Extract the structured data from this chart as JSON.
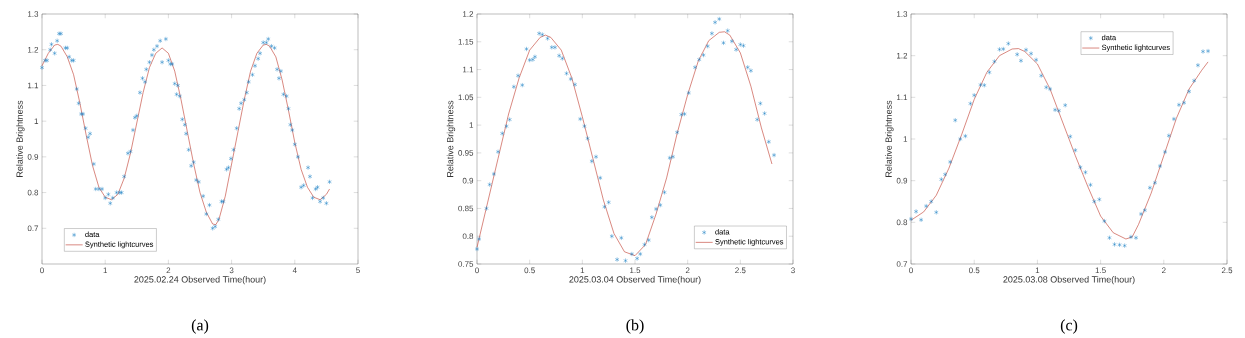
{
  "chart_data": [
    {
      "type": "scatter",
      "xlabel": "2025.02.24 Observed Time(hour)",
      "ylabel": "Relative Brightness",
      "xlim": [
        0,
        5
      ],
      "ylim": [
        0.6,
        1.3
      ],
      "xticks": [
        0,
        1,
        2,
        3,
        4,
        5
      ],
      "yticks": [
        0.7,
        0.8,
        0.9,
        1,
        1.1,
        1.2,
        1.3
      ],
      "legend": "bottom left",
      "annotations": [
        "(a)"
      ],
      "series": [
        {
          "name": "data",
          "marker": "cross",
          "color": "#0072bd",
          "x": [
            0.0,
            0.05,
            0.08,
            0.13,
            0.15,
            0.2,
            0.24,
            0.27,
            0.3,
            0.37,
            0.4,
            0.43,
            0.47,
            0.5,
            0.55,
            0.58,
            0.62,
            0.65,
            0.69,
            0.73,
            0.76,
            0.82,
            0.85,
            0.9,
            0.95,
            1.0,
            1.05,
            1.08,
            1.12,
            1.18,
            1.23,
            1.26,
            1.3,
            1.36,
            1.4,
            1.44,
            1.47,
            1.5,
            1.55,
            1.59,
            1.63,
            1.65,
            1.7,
            1.74,
            1.77,
            1.82,
            1.87,
            1.9,
            1.96,
            2.0,
            2.03,
            2.06,
            2.1,
            2.13,
            2.15,
            2.18,
            2.22,
            2.26,
            2.28,
            2.32,
            2.36,
            2.4,
            2.44,
            2.48,
            2.55,
            2.6,
            2.65,
            2.7,
            2.74,
            2.79,
            2.84,
            2.87,
            2.92,
            2.95,
            2.99,
            3.03,
            3.08,
            3.12,
            3.15,
            3.2,
            3.24,
            3.27,
            3.33,
            3.37,
            3.42,
            3.45,
            3.5,
            3.55,
            3.58,
            3.63,
            3.68,
            3.72,
            3.75,
            3.78,
            3.82,
            3.87,
            3.9,
            3.93,
            3.96,
            4.0,
            4.05,
            4.1,
            4.14,
            4.21,
            4.24,
            4.28,
            4.33,
            4.36,
            4.4,
            4.45,
            4.5,
            4.55
          ],
          "values": [
            1.15,
            1.17,
            1.17,
            1.2,
            1.215,
            1.19,
            1.225,
            1.245,
            1.245,
            1.205,
            1.205,
            1.18,
            1.17,
            1.17,
            1.09,
            1.05,
            1.02,
            1.02,
            0.98,
            0.955,
            0.965,
            0.88,
            0.81,
            0.81,
            0.81,
            0.785,
            0.795,
            0.77,
            0.785,
            0.8,
            0.8,
            0.8,
            0.845,
            0.91,
            0.915,
            0.975,
            1.01,
            1.015,
            1.08,
            1.12,
            1.11,
            1.145,
            1.165,
            1.185,
            1.2,
            1.21,
            1.225,
            1.165,
            1.23,
            1.17,
            1.16,
            1.16,
            1.105,
            1.075,
            1.1,
            1.07,
            1.005,
            0.99,
            0.965,
            0.92,
            0.875,
            0.885,
            0.835,
            0.83,
            0.79,
            0.74,
            0.765,
            0.7,
            0.705,
            0.725,
            0.775,
            0.775,
            0.865,
            0.87,
            0.895,
            0.92,
            0.98,
            1.035,
            1.05,
            1.06,
            1.08,
            1.11,
            1.13,
            1.155,
            1.175,
            1.19,
            1.22,
            1.22,
            1.23,
            1.21,
            1.205,
            1.145,
            1.12,
            1.14,
            1.075,
            1.07,
            1.035,
            0.99,
            0.975,
            0.935,
            0.9,
            0.815,
            0.82,
            0.87,
            0.845,
            0.785,
            0.81,
            0.815,
            0.775,
            0.785,
            0.77,
            0.83
          ]
        },
        {
          "name": "Synthetic lightcurves",
          "type": "line",
          "color": "#c0392b",
          "x": [
            0,
            0.1,
            0.2,
            0.25,
            0.3,
            0.4,
            0.5,
            0.6,
            0.7,
            0.8,
            0.9,
            1.0,
            1.1,
            1.2,
            1.3,
            1.4,
            1.5,
            1.6,
            1.7,
            1.8,
            1.9,
            2.0,
            2.1,
            2.2,
            2.3,
            2.4,
            2.5,
            2.6,
            2.7,
            2.75,
            2.8,
            2.9,
            3.0,
            3.1,
            3.2,
            3.3,
            3.4,
            3.5,
            3.55,
            3.6,
            3.7,
            3.8,
            3.9,
            4.0,
            4.1,
            4.2,
            4.3,
            4.4,
            4.5,
            4.55
          ],
          "values": [
            1.155,
            1.19,
            1.213,
            1.215,
            1.21,
            1.18,
            1.13,
            1.05,
            0.96,
            0.875,
            0.815,
            0.787,
            0.78,
            0.795,
            0.84,
            0.91,
            0.995,
            1.08,
            1.15,
            1.19,
            1.205,
            1.19,
            1.14,
            1.06,
            0.97,
            0.88,
            0.8,
            0.745,
            0.712,
            0.71,
            0.725,
            0.79,
            0.88,
            0.97,
            1.06,
            1.14,
            1.19,
            1.213,
            1.215,
            1.21,
            1.18,
            1.115,
            1.03,
            0.94,
            0.865,
            0.815,
            0.787,
            0.78,
            0.795,
            0.81
          ]
        }
      ]
    },
    {
      "type": "scatter",
      "xlabel": "2025.03.04 Observed Time(hour)",
      "ylabel": "Relative Brightness",
      "xlim": [
        0,
        3
      ],
      "ylim": [
        0.75,
        1.2
      ],
      "xticks": [
        0,
        0.5,
        1,
        1.5,
        2,
        2.5,
        3
      ],
      "yticks": [
        0.75,
        0.8,
        0.85,
        0.9,
        0.95,
        1,
        1.05,
        1.1,
        1.15,
        1.2
      ],
      "legend": "bottom right",
      "annotations": [
        "(b)"
      ],
      "series": [
        {
          "name": "data",
          "marker": "cross",
          "color": "#0072bd",
          "x": [
            0.0,
            0.02,
            0.09,
            0.12,
            0.16,
            0.2,
            0.24,
            0.28,
            0.31,
            0.35,
            0.39,
            0.43,
            0.47,
            0.5,
            0.53,
            0.55,
            0.59,
            0.62,
            0.67,
            0.71,
            0.74,
            0.78,
            0.81,
            0.85,
            0.89,
            0.93,
            0.98,
            1.02,
            1.05,
            1.09,
            1.13,
            1.17,
            1.21,
            1.25,
            1.28,
            1.33,
            1.37,
            1.41,
            1.47,
            1.52,
            1.55,
            1.59,
            1.63,
            1.66,
            1.7,
            1.74,
            1.78,
            1.83,
            1.86,
            1.9,
            1.94,
            1.97,
            2.01,
            2.07,
            2.11,
            2.15,
            2.19,
            2.23,
            2.26,
            2.3,
            2.34,
            2.38,
            2.42,
            2.46,
            2.5,
            2.53,
            2.57,
            2.6,
            2.66,
            2.69,
            2.73,
            2.77,
            2.82
          ],
          "values": [
            0.777,
            0.795,
            0.85,
            0.893,
            0.912,
            0.952,
            0.985,
            0.998,
            1.01,
            1.069,
            1.089,
            1.072,
            1.137,
            1.117,
            1.118,
            1.123,
            1.165,
            1.163,
            1.156,
            1.14,
            1.14,
            1.125,
            1.12,
            1.093,
            1.083,
            1.073,
            1.011,
            0.998,
            0.976,
            0.935,
            0.943,
            0.905,
            0.853,
            0.861,
            0.8,
            0.758,
            0.797,
            0.756,
            0.768,
            0.76,
            0.768,
            0.785,
            0.793,
            0.834,
            0.849,
            0.856,
            0.879,
            0.941,
            0.943,
            0.987,
            1.019,
            1.02,
            1.058,
            1.104,
            1.118,
            1.126,
            1.142,
            1.165,
            1.185,
            1.191,
            1.148,
            1.17,
            1.151,
            1.136,
            1.145,
            1.143,
            1.104,
            1.098,
            1.01,
            1.039,
            1.021,
            0.97,
            0.946
          ]
        },
        {
          "name": "Synthetic lightcurves",
          "type": "line",
          "color": "#c0392b",
          "x": [
            0,
            0.1,
            0.2,
            0.3,
            0.4,
            0.5,
            0.6,
            0.65,
            0.7,
            0.8,
            0.9,
            1.0,
            1.1,
            1.2,
            1.3,
            1.4,
            1.5,
            1.6,
            1.7,
            1.8,
            1.9,
            2.0,
            2.1,
            2.2,
            2.3,
            2.35,
            2.4,
            2.5,
            2.6,
            2.7,
            2.8
          ],
          "values": [
            0.78,
            0.86,
            0.94,
            1.02,
            1.085,
            1.135,
            1.158,
            1.162,
            1.158,
            1.135,
            1.085,
            1.015,
            0.94,
            0.865,
            0.805,
            0.772,
            0.765,
            0.785,
            0.84,
            0.905,
            0.985,
            1.055,
            1.115,
            1.152,
            1.167,
            1.168,
            1.162,
            1.13,
            1.07,
            0.995,
            0.93
          ]
        }
      ]
    },
    {
      "type": "scatter",
      "xlabel": "2025.03.08 Observed Time(hour)",
      "ylabel": "Relative Brightness",
      "xlim": [
        0,
        2.5
      ],
      "ylim": [
        0.7,
        1.3
      ],
      "xticks": [
        0,
        0.5,
        1,
        1.5,
        2,
        2.5
      ],
      "yticks": [
        0.7,
        0.8,
        0.9,
        1,
        1.1,
        1.2,
        1.3
      ],
      "legend": "top right",
      "annotations": [
        "(c)"
      ],
      "series": [
        {
          "name": "data",
          "marker": "cross",
          "color": "#0072bd",
          "x": [
            0.0,
            0.04,
            0.08,
            0.12,
            0.16,
            0.2,
            0.24,
            0.27,
            0.31,
            0.35,
            0.39,
            0.43,
            0.47,
            0.5,
            0.55,
            0.58,
            0.62,
            0.66,
            0.7,
            0.73,
            0.77,
            0.84,
            0.87,
            0.91,
            0.95,
            0.99,
            1.03,
            1.07,
            1.1,
            1.14,
            1.17,
            1.22,
            1.26,
            1.3,
            1.34,
            1.38,
            1.42,
            1.45,
            1.49,
            1.53,
            1.57,
            1.61,
            1.65,
            1.69,
            1.74,
            1.78,
            1.82,
            1.85,
            1.89,
            1.93,
            1.97,
            2.01,
            2.04,
            2.08,
            2.12,
            2.16,
            2.2,
            2.24,
            2.27,
            2.31,
            2.35
          ],
          "values": [
            0.808,
            0.826,
            0.806,
            0.839,
            0.85,
            0.824,
            0.903,
            0.915,
            0.945,
            1.045,
            1.0,
            1.007,
            1.085,
            1.105,
            1.13,
            1.129,
            1.16,
            1.186,
            1.215,
            1.216,
            1.229,
            1.203,
            1.188,
            1.214,
            1.205,
            1.19,
            1.152,
            1.124,
            1.12,
            1.07,
            1.068,
            1.081,
            1.006,
            0.973,
            0.932,
            0.92,
            0.89,
            0.85,
            0.855,
            0.803,
            0.763,
            0.747,
            0.746,
            0.744,
            0.765,
            0.763,
            0.82,
            0.829,
            0.883,
            0.895,
            0.935,
            0.969,
            1.008,
            1.048,
            1.082,
            1.087,
            1.114,
            1.14,
            1.177,
            1.21,
            1.211
          ]
        },
        {
          "name": "Synthetic lightcurves",
          "type": "line",
          "color": "#c0392b",
          "x": [
            0,
            0.1,
            0.2,
            0.3,
            0.4,
            0.5,
            0.6,
            0.7,
            0.8,
            0.85,
            0.9,
            1.0,
            1.1,
            1.2,
            1.3,
            1.4,
            1.5,
            1.6,
            1.7,
            1.75,
            1.8,
            1.9,
            2.0,
            2.1,
            2.2,
            2.3,
            2.35
          ],
          "values": [
            0.805,
            0.825,
            0.865,
            0.93,
            1.01,
            1.095,
            1.16,
            1.2,
            1.216,
            1.217,
            1.21,
            1.18,
            1.12,
            1.04,
            0.96,
            0.885,
            0.815,
            0.775,
            0.76,
            0.765,
            0.795,
            0.87,
            0.96,
            1.05,
            1.12,
            1.165,
            1.185
          ]
        }
      ]
    }
  ]
}
